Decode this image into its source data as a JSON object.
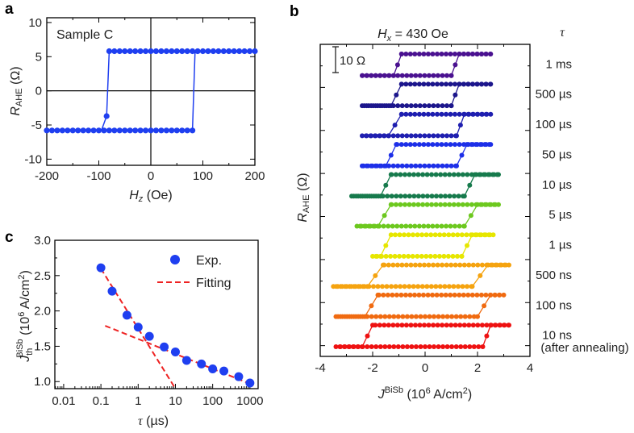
{
  "chart_data": [
    {
      "panel": "a",
      "type": "scatter",
      "panel_label": "a",
      "annotation": "Sample C",
      "xlabel": {
        "main": "H",
        "sub": "z",
        "unit": " (Oe)"
      },
      "ylabel": {
        "main": "R",
        "sub": "AHE",
        "unit": " (Ω)"
      },
      "xlim": [
        -200,
        200
      ],
      "ylim": [
        -10.9,
        10.7
      ],
      "xticks": [
        "-200",
        "-100",
        "0",
        "100",
        "200"
      ],
      "xtick_values": [
        -200,
        -100,
        0,
        100,
        200
      ],
      "yticks": [
        "10",
        "5",
        "0",
        "-5",
        "-10"
      ],
      "ytick_values": [
        10,
        5,
        0,
        -5,
        -10
      ],
      "color": "#1f3ff0",
      "loop": {
        "high": 5.8,
        "low": -5.8,
        "down_switch_field": -82,
        "intermediate_point": [
          -85,
          -3.7
        ],
        "up_switch_field": 80,
        "step": 10
      }
    },
    {
      "panel": "b",
      "type": "line",
      "panel_label": "b",
      "title": {
        "main": "H",
        "sub": "x",
        "rest": " = 430 Oe"
      },
      "legend_title": "τ",
      "scale_bar": "10 Ω",
      "xlabel": {
        "main": "J",
        "sup": "BiSb",
        "unit": " (10",
        "unit_sup": "6",
        "unit_end": " A/cm",
        "unit_sup2": "2",
        "close": ")"
      },
      "ylabel": {
        "main": "R",
        "sub": "AHE",
        "unit": " (Ω)"
      },
      "xlim": [
        -4,
        4
      ],
      "ylim": [
        0,
        145
      ],
      "xticks": [
        "-4",
        "-2",
        "0",
        "2",
        "4"
      ],
      "xtick_values": [
        -4,
        -2,
        0,
        2,
        4
      ],
      "loop_amplitude_ohm": 10,
      "note": "(after annealing)",
      "series": [
        {
          "name": "1 ms",
          "color": "#4a1190",
          "offset": 135.5,
          "xmin": -2.4,
          "xmax": 2.5,
          "down": [
            -0.9,
            -1.2
          ],
          "up": [
            1.0,
            1.3
          ]
        },
        {
          "name": "500 µs",
          "color": "#1c168c",
          "offset": 121.5,
          "xmin": -2.4,
          "xmax": 2.5,
          "down": [
            -0.9,
            -1.3
          ],
          "up": [
            1.0,
            1.3
          ]
        },
        {
          "name": "100 µs",
          "color": "#1f1fb0",
          "offset": 107.5,
          "xmin": -2.4,
          "xmax": 2.5,
          "down": [
            -0.9,
            -1.4
          ],
          "up": [
            1.2,
            1.5
          ]
        },
        {
          "name": "50 µs",
          "color": "#1d2fe8",
          "offset": 93.5,
          "xmin": -2.4,
          "xmax": 2.5,
          "down": [
            -1.1,
            -1.5
          ],
          "up": [
            1.2,
            1.6
          ]
        },
        {
          "name": "10 µs",
          "color": "#167a4c",
          "offset": 79.5,
          "xmin": -2.8,
          "xmax": 2.8,
          "down": [
            -1.3,
            -1.7
          ],
          "up": [
            1.5,
            1.9
          ]
        },
        {
          "name": "5 µs",
          "color": "#6cc81e",
          "offset": 65.5,
          "xmin": -2.6,
          "xmax": 2.8,
          "down": [
            -1.3,
            -1.8
          ],
          "up": [
            1.5,
            2.0
          ]
        },
        {
          "name": "1 µs",
          "color": "#e6e600",
          "offset": 51.5,
          "xmin": -2.0,
          "xmax": 2.6,
          "down": [
            -1.3,
            -1.7
          ],
          "up": [
            1.4,
            1.8
          ]
        },
        {
          "name": "500 ns",
          "color": "#f5a30f",
          "offset": 37.5,
          "xmin": -3.5,
          "xmax": 3.2,
          "down": [
            -1.6,
            -2.2
          ],
          "up": [
            1.8,
            2.4
          ]
        },
        {
          "name": "100 ns",
          "color": "#f06a10",
          "offset": 23.5,
          "xmin": -3.4,
          "xmax": 3.0,
          "down": [
            -1.8,
            -2.3
          ],
          "up": [
            2.0,
            2.5
          ]
        },
        {
          "name": "10 ns",
          "color": "#ee1111",
          "offset": 9.5,
          "xmin": -3.4,
          "xmax": 3.2,
          "down": [
            -2.0,
            -2.4
          ],
          "up": [
            2.2,
            2.5
          ]
        }
      ]
    },
    {
      "panel": "c",
      "type": "scatter",
      "panel_label": "c",
      "xlabel": {
        "main": "τ",
        "unit": " (µs)"
      },
      "ylabel": {
        "main": "J",
        "sub": "th",
        "sup": "BiSb",
        "unit": " (10",
        "unit_sup": "6",
        "unit_end": " A/cm",
        "unit_sup2": "2",
        "close": ")"
      },
      "xscale": "log",
      "xlim": [
        0.0058,
        1660
      ],
      "ylim": [
        0.9,
        3.0
      ],
      "xticks": [
        "0.01",
        "0.1",
        "1",
        "10",
        "100",
        "1000"
      ],
      "xtick_values": [
        0.01,
        0.1,
        1,
        10,
        100,
        1000
      ],
      "yticks": [
        "3.0",
        "2.5",
        "2.0",
        "1.5",
        "1.0"
      ],
      "ytick_values": [
        3.0,
        2.5,
        2.0,
        1.5,
        1.0
      ],
      "legend": [
        {
          "label": "Exp.",
          "color": "#1f3ff0"
        },
        {
          "label": "Fitting",
          "color": "#ee2222"
        }
      ],
      "series": [
        {
          "name": "Exp.",
          "x": [
            0.1,
            0.2,
            0.5,
            1,
            2,
            5,
            10,
            20,
            50,
            100,
            200,
            500,
            1000
          ],
          "y": [
            2.61,
            2.28,
            1.94,
            1.77,
            1.64,
            1.49,
            1.42,
            1.3,
            1.25,
            1.18,
            1.15,
            1.07,
            0.98
          ]
        },
        {
          "name": "Fitting 1",
          "x": [
            0.1,
            10
          ],
          "y": [
            2.6,
            0.9
          ]
        },
        {
          "name": "Fitting 2",
          "x": [
            0.13,
            1000
          ],
          "y": [
            1.79,
            0.97
          ]
        }
      ]
    }
  ]
}
